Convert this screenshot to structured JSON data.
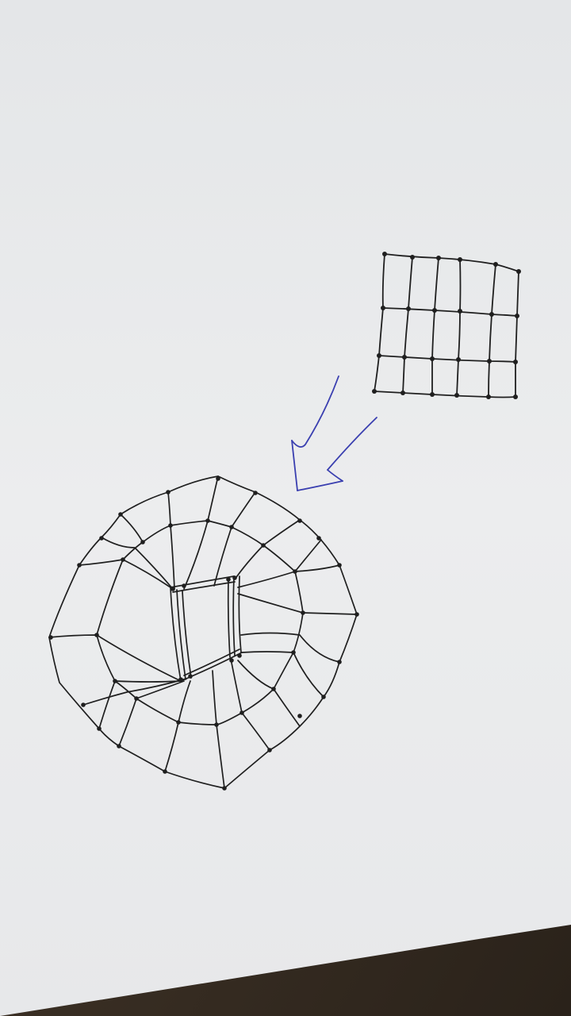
{
  "scene": {
    "background": "#3b3026",
    "paper_color": "#e9ebec",
    "ink_color": "#1f1f1f",
    "arrow_color": "#3a3fb0"
  },
  "source_grid": {
    "columns": 6,
    "rows": 4,
    "description": ""
  },
  "result_mesh": {
    "description": ""
  }
}
